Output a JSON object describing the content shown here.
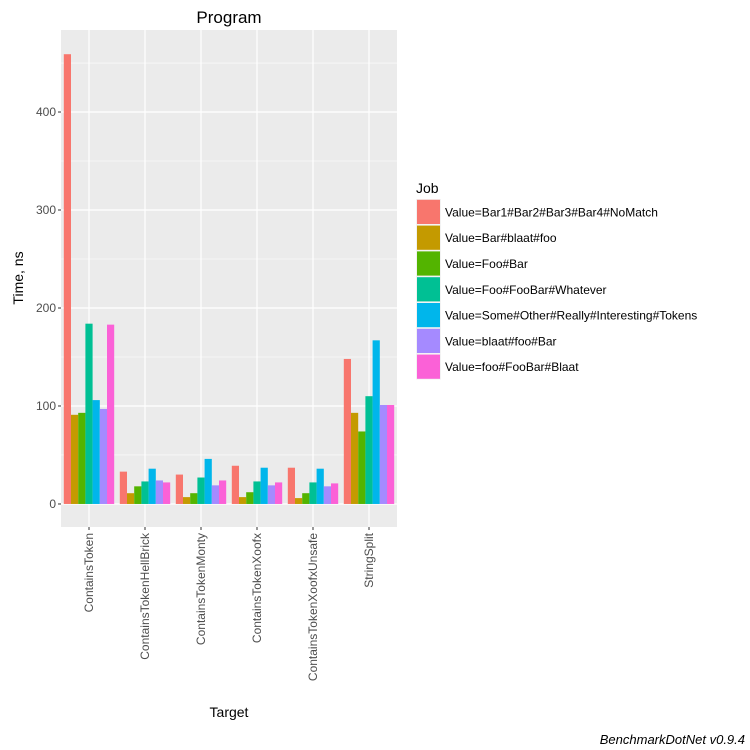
{
  "chart_data": {
    "type": "bar",
    "title": "Program",
    "xlabel": "Target",
    "ylabel": "Time, ns",
    "ylim": [
      -23.5,
      483.7
    ],
    "yticks": [
      0,
      100,
      200,
      300,
      400
    ],
    "grid": true,
    "legend_title": "Job",
    "legend_placement": "right",
    "categories": [
      "ContainsToken",
      "ContainsTokenHellBrick",
      "ContainsTokenMonty",
      "ContainsTokenXoofx",
      "ContainsTokenXoofxUnsafe",
      "StringSplit"
    ],
    "series": [
      {
        "name": "Value=Bar1#Bar2#Bar3#Bar4#NoMatch",
        "color": "#F8766D",
        "values": [
          459,
          33,
          30,
          39,
          37,
          148
        ]
      },
      {
        "name": "Value=Bar#blaat#foo",
        "color": "#C49A00",
        "values": [
          91,
          11,
          7,
          7,
          6,
          93
        ]
      },
      {
        "name": "Value=Foo#Bar",
        "color": "#53B400",
        "values": [
          93,
          18,
          11,
          12,
          11,
          74
        ]
      },
      {
        "name": "Value=Foo#FooBar#Whatever",
        "color": "#00C094",
        "values": [
          184,
          23,
          27,
          23,
          22,
          110
        ]
      },
      {
        "name": "Value=Some#Other#Really#Interesting#Tokens",
        "color": "#00B6EB",
        "values": [
          106,
          36,
          46,
          37,
          36,
          167
        ]
      },
      {
        "name": "Value=blaat#foo#Bar",
        "color": "#A58AFF",
        "values": [
          97,
          24,
          19,
          19,
          18,
          101
        ]
      },
      {
        "name": "Value=foo#FooBar#Blaat",
        "color": "#FB61D7",
        "values": [
          183,
          22,
          24,
          22,
          21,
          101
        ]
      }
    ]
  },
  "caption": "BenchmarkDotNet v0.9.4"
}
